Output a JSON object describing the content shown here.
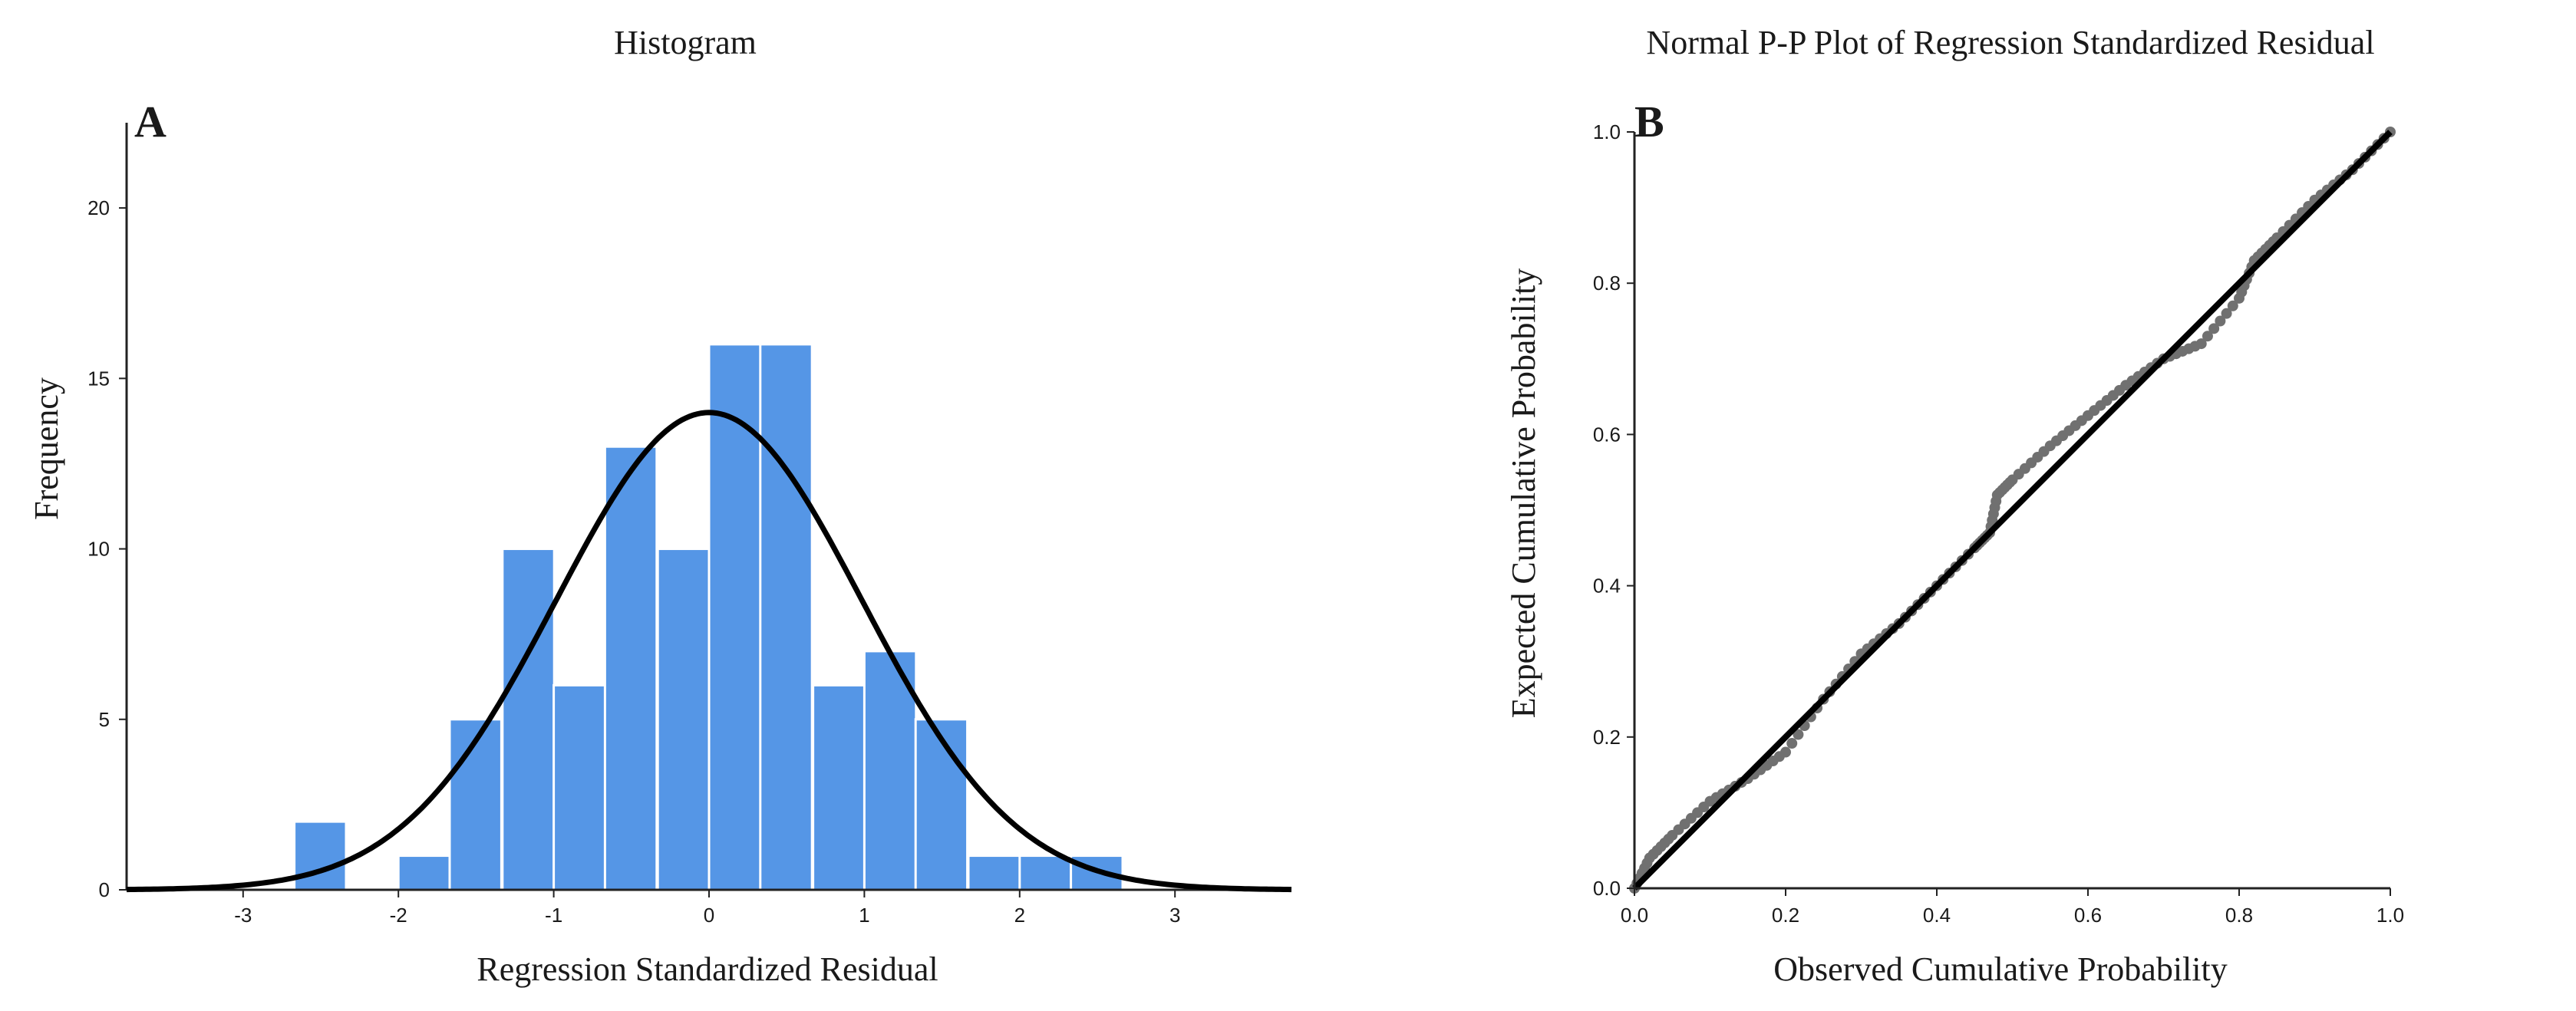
{
  "chart_data": [
    {
      "panel_label": "A",
      "type": "bar",
      "subtype": "histogram",
      "title": "Histogram",
      "xlabel": "Regression Standardized Residual",
      "ylabel": "Frequency",
      "xlim": [
        -3.75,
        3.75
      ],
      "ylim": [
        0,
        22.5
      ],
      "xticks": [
        "-3",
        "-2",
        "-1",
        "0",
        "1",
        "2",
        "3"
      ],
      "xtick_values": [
        -3,
        -2,
        -1,
        0,
        1,
        2,
        3
      ],
      "yticks": [
        "0",
        "5",
        "10",
        "15",
        "20"
      ],
      "ytick_values": [
        0,
        5,
        10,
        15,
        20
      ],
      "bin_width": 0.333,
      "bins": [
        {
          "start": -2.67,
          "value": 2
        },
        {
          "start": -2.33,
          "value": 0
        },
        {
          "start": -2.0,
          "value": 1
        },
        {
          "start": -1.67,
          "value": 5
        },
        {
          "start": -1.33,
          "value": 10
        },
        {
          "start": -1.0,
          "value": 6
        },
        {
          "start": -0.67,
          "value": 13
        },
        {
          "start": -0.33,
          "value": 10
        },
        {
          "start": 0.0,
          "value": 16
        },
        {
          "start": 0.33,
          "value": 16
        },
        {
          "start": 0.67,
          "value": 6
        },
        {
          "start": 1.0,
          "value": 7
        },
        {
          "start": 1.33,
          "value": 5
        },
        {
          "start": 1.67,
          "value": 1
        },
        {
          "start": 2.0,
          "value": 1
        },
        {
          "start": 2.33,
          "value": 1
        }
      ],
      "normal_curve": {
        "mean": 0,
        "sd": 0.985,
        "peak": 14.0,
        "color": "#000000"
      },
      "bar_color": "#5596e6"
    },
    {
      "panel_label": "B",
      "type": "scatter",
      "title": "Normal P-P Plot of Regression Standardized Residual",
      "xlabel": "Observed Cumulative Probability",
      "ylabel": "Expected Cumulative Probability",
      "xlim": [
        0,
        1
      ],
      "ylim": [
        0,
        1
      ],
      "xticks": [
        "0.0",
        "0.2",
        "0.4",
        "0.6",
        "0.8",
        "1.0"
      ],
      "xtick_values": [
        0,
        0.2,
        0.4,
        0.6,
        0.8,
        1.0
      ],
      "yticks": [
        "0.0",
        "0.2",
        "0.4",
        "0.6",
        "0.8",
        "1.0"
      ],
      "ytick_values": [
        0,
        0.2,
        0.4,
        0.6,
        0.8,
        1.0
      ],
      "reference_line": [
        [
          0,
          0
        ],
        [
          1,
          1
        ]
      ],
      "point_color": "#707070",
      "curve_points": [
        [
          0.0,
          0.0
        ],
        [
          0.02,
          0.04
        ],
        [
          0.05,
          0.07
        ],
        [
          0.1,
          0.115
        ],
        [
          0.15,
          0.145
        ],
        [
          0.2,
          0.18
        ],
        [
          0.25,
          0.25
        ],
        [
          0.3,
          0.31
        ],
        [
          0.35,
          0.35
        ],
        [
          0.4,
          0.4
        ],
        [
          0.45,
          0.45
        ],
        [
          0.47,
          0.47
        ],
        [
          0.48,
          0.52
        ],
        [
          0.5,
          0.54
        ],
        [
          0.55,
          0.585
        ],
        [
          0.6,
          0.625
        ],
        [
          0.65,
          0.665
        ],
        [
          0.7,
          0.7
        ],
        [
          0.75,
          0.72
        ],
        [
          0.8,
          0.78
        ],
        [
          0.82,
          0.83
        ],
        [
          0.85,
          0.86
        ],
        [
          0.9,
          0.91
        ],
        [
          0.95,
          0.95
        ],
        [
          1.0,
          1.0
        ]
      ]
    }
  ]
}
